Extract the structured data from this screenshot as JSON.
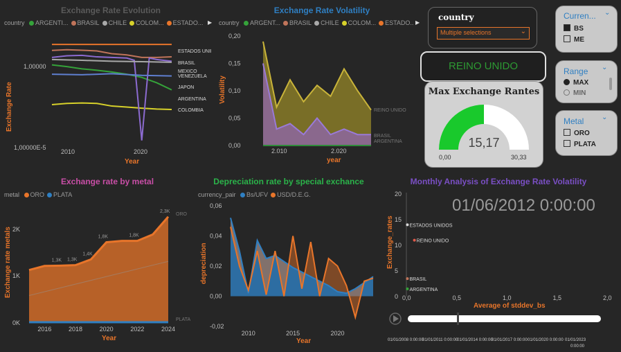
{
  "p1": {
    "title": "Exchange Rate Evolution",
    "legend_label": "country",
    "legend": [
      {
        "name": "ARGENTI...",
        "color": "#35a33a"
      },
      {
        "name": "BRASIL",
        "color": "#c0745a"
      },
      {
        "name": "CHILE",
        "color": "#a9a9a9"
      },
      {
        "name": "COLOM...",
        "color": "#d7d12a"
      },
      {
        "name": "ESTADO...",
        "color": "#e8752a"
      }
    ],
    "y_label": "Exchange Rate",
    "x_label": "Year",
    "y_ticks": [
      "1,00000",
      "1,00000E-5"
    ],
    "x_ticks": [
      "2010",
      "2020"
    ],
    "line_labels": [
      "ESTADOS UNIDOS",
      "BRASIL",
      "MEXICO",
      "VENEZUELA",
      "JAPON",
      "ARGENTINA",
      "COLOMBIA"
    ]
  },
  "p2": {
    "title": "Exchange Rate Volatility",
    "legend_label": "country",
    "legend": [
      {
        "name": "ARGENT...",
        "color": "#35a33a"
      },
      {
        "name": "BRASIL",
        "color": "#c0745a"
      },
      {
        "name": "CHILE",
        "color": "#a9a9a9"
      },
      {
        "name": "COLOM...",
        "color": "#d7d12a"
      },
      {
        "name": "ESTADO...",
        "color": "#e8752a"
      }
    ],
    "y_label": "Volatility",
    "x_label": "year",
    "y_ticks": [
      "0,20",
      "0,15",
      "0,10",
      "0,05",
      "0,00"
    ],
    "x_ticks": [
      "2.010",
      "2.020"
    ],
    "right_labels": [
      "REINO UNIDO",
      "BRASIL",
      "ARGENTINA"
    ]
  },
  "country_slicer": {
    "title": "country",
    "value": "Multiple selections"
  },
  "reino_button": {
    "label": "REINO UNIDO"
  },
  "gauge": {
    "title": "Max Exchange Rantes",
    "value": "15,17",
    "min": "0,00",
    "max": "30,33",
    "fill_fraction": 0.5
  },
  "currency_slicer": {
    "title": "Curren...",
    "items": [
      {
        "label": "BS",
        "checked": true
      },
      {
        "label": "ME",
        "checked": false
      }
    ]
  },
  "range_slicer": {
    "title": "Range",
    "items": [
      {
        "label": "MAX",
        "selected": true
      },
      {
        "label": "MIN",
        "selected": false
      }
    ]
  },
  "metal_slicer": {
    "title": "Metal",
    "items": [
      {
        "label": "ORO",
        "checked": false
      },
      {
        "label": "PLATA",
        "checked": false
      }
    ]
  },
  "p3": {
    "title": "Exchange rate by metal",
    "legend_label": "metal",
    "legend": [
      {
        "name": "ORO",
        "color": "#e8752a"
      },
      {
        "name": "PLATA",
        "color": "#2f7fc2"
      }
    ],
    "y_label": "Exchange rate metals",
    "x_label": "Year",
    "y_ticks": [
      "2K",
      "1K",
      "0K"
    ],
    "x_ticks": [
      "2016",
      "2018",
      "2020",
      "2022",
      "2024"
    ],
    "data_labels": [
      "1,3K",
      "1,3K",
      "1,4K",
      "1,8K",
      "1,8K",
      "2,3K"
    ],
    "series_end_labels": [
      "ORO",
      "PLATA"
    ]
  },
  "p4": {
    "title": "Depreciation rate by special exchance",
    "legend_label": "currency_pair",
    "legend": [
      {
        "name": "Bs/UFV",
        "color": "#2f7fc2"
      },
      {
        "name": "USD/D.E.G.",
        "color": "#e8752a"
      }
    ],
    "y_label": "depreciation",
    "x_label": "Year",
    "y_ticks": [
      "0,06",
      "0,04",
      "0,02",
      "0,00",
      "-0,02"
    ],
    "x_ticks": [
      "2010",
      "2015",
      "2020"
    ]
  },
  "p5": {
    "title": "Monthly Analysis of Exchange Rate Volatility",
    "big_date": "01/06/2012 0:00:00",
    "y_label": "Exchange_rates",
    "x_label": "Average of stddev_bs",
    "y_ticks": [
      "20",
      "15",
      "10",
      "5",
      "0"
    ],
    "x_ticks": [
      "0,0",
      "0,5",
      "1,0",
      "1,5",
      "2,0"
    ],
    "point_labels": [
      "ESTADOS UNIDOS",
      "REINO UNIDO",
      "BRASIL",
      "ARGENTINA"
    ],
    "timeline_ticks": [
      "01/01/2008 0:00:00",
      "01/01/2011 0:00:00",
      "01/01/2014 0:00:00",
      "01/01/2017 0:00:00",
      "01/01/2020 0:00:00",
      "01/01/2023",
      "0:00:00"
    ]
  },
  "chart_data": [
    {
      "type": "line",
      "title": "Exchange Rate Evolution",
      "xlabel": "Year",
      "ylabel": "Exchange Rate",
      "x": [
        2008,
        2010,
        2012,
        2014,
        2016,
        2018,
        2020,
        2022,
        2024
      ],
      "series": [
        {
          "name": "ESTADOS UNIDOS",
          "values": [
            6.96,
            6.96,
            6.96,
            6.96,
            6.96,
            6.96,
            6.96,
            6.96,
            6.96
          ]
        },
        {
          "name": "BRASIL",
          "values": [
            3.2,
            3.5,
            3.3,
            3.0,
            2.1,
            1.8,
            1.3,
            1.3,
            1.4
          ]
        },
        {
          "name": "ARGENTINA",
          "values": [
            0.5,
            0.4,
            0.3,
            0.25,
            0.2,
            0.15,
            0.1,
            0.05,
            0.02
          ]
        },
        {
          "name": "COLOMBIA",
          "values": [
            0.003,
            0.0035,
            0.0037,
            0.0035,
            0.0025,
            0.0022,
            0.0019,
            0.0017,
            0.0016
          ]
        }
      ]
    },
    {
      "type": "area",
      "title": "Exchange Rate Volatility",
      "xlabel": "year",
      "ylabel": "Volatility",
      "ylim": [
        0,
        0.2
      ],
      "x": [
        2008,
        2010,
        2012,
        2014,
        2016,
        2018,
        2020,
        2022,
        2024
      ],
      "series": [
        {
          "name": "REINO UNIDO",
          "values": [
            0.19,
            0.07,
            0.12,
            0.08,
            0.11,
            0.09,
            0.14,
            0.1,
            0.065
          ]
        },
        {
          "name": "BRASIL",
          "values": [
            0.15,
            0.03,
            0.04,
            0.02,
            0.05,
            0.02,
            0.03,
            0.02,
            0.02
          ]
        }
      ]
    },
    {
      "type": "area",
      "title": "Exchange rate by metal",
      "xlabel": "Year",
      "ylabel": "Exchange rate metals",
      "x": [
        2015,
        2016,
        2017,
        2018,
        2019,
        2020,
        2021,
        2022,
        2023,
        2024
      ],
      "series": [
        {
          "name": "ORO",
          "values": [
            1160,
            1250,
            1257,
            1268,
            1393,
            1770,
            1800,
            1800,
            1940,
            2330
          ]
        },
        {
          "name": "PLATA",
          "values": [
            16,
            17,
            17,
            16,
            16,
            20,
            25,
            21,
            23,
            28
          ]
        }
      ]
    },
    {
      "type": "line",
      "title": "Depreciation rate by special exchance",
      "xlabel": "Year",
      "ylabel": "depreciation",
      "ylim": [
        -0.02,
        0.06
      ],
      "x": [
        2008,
        2009,
        2010,
        2011,
        2012,
        2013,
        2014,
        2015,
        2016,
        2017,
        2018,
        2019,
        2020,
        2021,
        2022,
        2023,
        2024
      ],
      "series": [
        {
          "name": "Bs/UFV",
          "values": [
            0.052,
            0.03,
            0.002,
            0.037,
            0.025,
            0.027,
            0.023,
            0.019,
            0.016,
            0.013,
            0.01,
            0.007,
            0.003,
            0.002,
            0.005,
            0.009,
            0.013
          ]
        },
        {
          "name": "USD/D.E.G.",
          "values": [
            0.046,
            0.02,
            0.004,
            0.03,
            0.001,
            0.03,
            0.0,
            0.04,
            0.005,
            0.036,
            0.0,
            0.025,
            0.02,
            0.007,
            -0.014,
            0.01,
            0.012
          ]
        }
      ]
    },
    {
      "type": "scatter",
      "title": "Monthly Analysis of Exchange Rate Volatility",
      "xlabel": "Average of stddev_bs",
      "ylabel": "Exchange_rates",
      "xlim": [
        0,
        2
      ],
      "ylim": [
        0,
        20
      ],
      "points": [
        {
          "label": "ESTADOS UNIDOS",
          "x": 0.01,
          "y": 14.0
        },
        {
          "label": "REINO UNIDO",
          "x": 0.08,
          "y": 11.0
        },
        {
          "label": "BRASIL",
          "x": 0.01,
          "y": 3.5
        },
        {
          "label": "ARGENTINA",
          "x": 0.01,
          "y": 1.5
        }
      ]
    }
  ]
}
